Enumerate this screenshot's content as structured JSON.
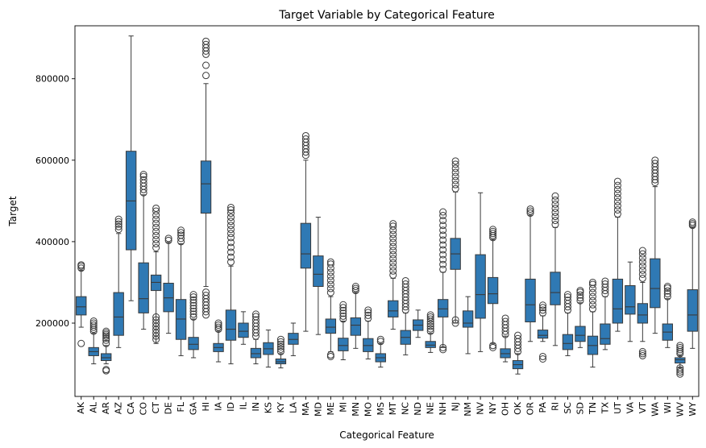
{
  "chart_data": {
    "type": "box",
    "title": "Target Variable by Categorical Feature",
    "xlabel": "Categorical Feature",
    "ylabel": "Target",
    "ylim": [
      20000,
      930000
    ],
    "yticks": [
      200000,
      400000,
      600000,
      800000
    ],
    "grid": false,
    "box_color": "#2f79b4",
    "categories": [
      "AK",
      "AL",
      "AR",
      "AZ",
      "CA",
      "CO",
      "CT",
      "DE",
      "FL",
      "GA",
      "HI",
      "IA",
      "ID",
      "IL",
      "IN",
      "KS",
      "KY",
      "LA",
      "MA",
      "MD",
      "ME",
      "MI",
      "MN",
      "MO",
      "MS",
      "MT",
      "NC",
      "ND",
      "NE",
      "NH",
      "NJ",
      "NM",
      "NV",
      "NY",
      "OH",
      "OK",
      "OR",
      "PA",
      "RI",
      "SC",
      "SD",
      "TN",
      "TX",
      "UT",
      "VA",
      "VT",
      "WA",
      "WI",
      "WV",
      "WY"
    ],
    "boxes": [
      {
        "lo": 190000,
        "q1": 220000,
        "med": 240000,
        "q3": 265000,
        "hi": 330000,
        "out": [
          150000,
          335000,
          340000,
          343000
        ]
      },
      {
        "lo": 100000,
        "q1": 120000,
        "med": 130000,
        "q3": 140000,
        "hi": 175000,
        "out": [
          180000,
          185000,
          190000,
          195000,
          200000,
          205000
        ]
      },
      {
        "lo": 100000,
        "q1": 108000,
        "med": 115000,
        "q3": 125000,
        "hi": 145000,
        "out": [
          83000,
          86000,
          150000,
          158000,
          163000,
          168000,
          172000,
          176000,
          180000
        ]
      },
      {
        "lo": 140000,
        "q1": 170000,
        "med": 215000,
        "q3": 275000,
        "hi": 420000,
        "out": [
          430000,
          437000,
          443000,
          449000,
          455000
        ]
      },
      {
        "lo": 255000,
        "q1": 380000,
        "med": 500000,
        "q3": 622000,
        "hi": 905000,
        "out": []
      },
      {
        "lo": 185000,
        "q1": 225000,
        "med": 260000,
        "q3": 348000,
        "hi": 515000,
        "out": [
          520000,
          528000,
          536000,
          544000,
          552000,
          560000,
          565000
        ]
      },
      {
        "lo": 150000,
        "q1": 280000,
        "med": 300000,
        "q3": 318000,
        "hi": 375000,
        "out": [
          160000,
          168000,
          176000,
          184000,
          192000,
          200000,
          208000,
          215000,
          385000,
          395000,
          405000,
          415000,
          425000,
          435000,
          445000,
          455000,
          465000,
          475000,
          482000
        ]
      },
      {
        "lo": 175000,
        "q1": 228000,
        "med": 262000,
        "q3": 298000,
        "hi": 398000,
        "out": [
          403000,
          408000
        ]
      },
      {
        "lo": 120000,
        "q1": 160000,
        "med": 210000,
        "q3": 258000,
        "hi": 395000,
        "out": [
          400000,
          408000,
          416000,
          422000,
          428000
        ]
      },
      {
        "lo": 115000,
        "q1": 135000,
        "med": 148000,
        "q3": 165000,
        "hi": 210000,
        "out": [
          215000,
          222000,
          229000,
          236000,
          243000,
          250000,
          257000,
          264000,
          270000
        ]
      },
      {
        "lo": 290000,
        "q1": 470000,
        "med": 542000,
        "q3": 598000,
        "hi": 788000,
        "out": [
          220000,
          228000,
          236000,
          244000,
          252000,
          260000,
          268000,
          276000,
          808000,
          833000,
          860000,
          868000,
          876000,
          884000,
          892000
        ]
      },
      {
        "lo": 105000,
        "q1": 130000,
        "med": 140000,
        "q3": 150000,
        "hi": 180000,
        "out": [
          185000,
          190000,
          195000,
          200000
        ]
      },
      {
        "lo": 100000,
        "q1": 158000,
        "med": 185000,
        "q3": 232000,
        "hi": 340000,
        "out": [
          350000,
          362000,
          374000,
          386000,
          398000,
          410000,
          420000,
          430000,
          440000,
          450000,
          460000,
          470000,
          478000,
          484000
        ]
      },
      {
        "lo": 148000,
        "q1": 165000,
        "med": 180000,
        "q3": 200000,
        "hi": 228000,
        "out": []
      },
      {
        "lo": 100000,
        "q1": 115000,
        "med": 125000,
        "q3": 138000,
        "hi": 160000,
        "out": [
          168000,
          176000,
          184000,
          192000,
          200000,
          208000,
          216000,
          222000
        ]
      },
      {
        "lo": 92000,
        "q1": 123000,
        "med": 137000,
        "q3": 152000,
        "hi": 183000,
        "out": []
      },
      {
        "lo": 90000,
        "q1": 100000,
        "med": 105000,
        "q3": 112000,
        "hi": 125000,
        "out": [
          130000,
          136000,
          142000,
          148000,
          154000,
          160000
        ]
      },
      {
        "lo": 120000,
        "q1": 148000,
        "med": 160000,
        "q3": 175000,
        "hi": 200000,
        "out": []
      },
      {
        "lo": 180000,
        "q1": 335000,
        "med": 370000,
        "q3": 445000,
        "hi": 600000,
        "out": [
          612000,
          620000,
          628000,
          636000,
          644000,
          652000,
          660000
        ]
      },
      {
        "lo": 172000,
        "q1": 290000,
        "med": 320000,
        "q3": 365000,
        "hi": 460000,
        "out": []
      },
      {
        "lo": 130000,
        "q1": 175000,
        "med": 190000,
        "q3": 210000,
        "hi": 265000,
        "out": [
          118000,
          122000,
          275000,
          285000,
          295000,
          305000,
          315000,
          325000,
          335000,
          345000,
          350000
        ]
      },
      {
        "lo": 110000,
        "q1": 132000,
        "med": 145000,
        "q3": 163000,
        "hi": 205000,
        "out": [
          210000,
          217000,
          224000,
          231000,
          238000,
          245000
        ]
      },
      {
        "lo": 138000,
        "q1": 170000,
        "med": 195000,
        "q3": 213000,
        "hi": 275000,
        "out": [
          280000,
          285000,
          290000
        ]
      },
      {
        "lo": 112000,
        "q1": 130000,
        "med": 145000,
        "q3": 162000,
        "hi": 205000,
        "out": [
          212000,
          219000,
          226000,
          232000
        ]
      },
      {
        "lo": 92000,
        "q1": 105000,
        "med": 115000,
        "q3": 125000,
        "hi": 150000,
        "out": [
          155000,
          160000
        ]
      },
      {
        "lo": 185000,
        "q1": 215000,
        "med": 230000,
        "q3": 255000,
        "hi": 310000,
        "out": [
          318000,
          328000,
          338000,
          348000,
          358000,
          368000,
          378000,
          388000,
          398000,
          408000,
          418000,
          428000,
          438000,
          444000
        ]
      },
      {
        "lo": 122000,
        "q1": 148000,
        "med": 165000,
        "q3": 182000,
        "hi": 225000,
        "out": [
          232000,
          240000,
          248000,
          256000,
          264000,
          272000,
          280000,
          288000,
          296000,
          304000
        ]
      },
      {
        "lo": 165000,
        "q1": 182000,
        "med": 195000,
        "q3": 208000,
        "hi": 232000,
        "out": []
      },
      {
        "lo": 128000,
        "q1": 140000,
        "med": 146000,
        "q3": 155000,
        "hi": 175000,
        "out": [
          180000,
          186000,
          192000,
          198000,
          204000,
          210000,
          215000,
          220000
        ]
      },
      {
        "lo": 140000,
        "q1": 215000,
        "med": 235000,
        "q3": 258000,
        "hi": 325000,
        "out": [
          135000,
          140000,
          332000,
          344000,
          356000,
          368000,
          380000,
          392000,
          404000,
          416000,
          428000,
          440000,
          452000,
          464000,
          473000
        ]
      },
      {
        "lo": 200000,
        "q1": 332000,
        "med": 370000,
        "q3": 408000,
        "hi": 522000,
        "out": [
          200000,
          208000,
          530000,
          540000,
          550000,
          560000,
          570000,
          580000,
          590000,
          598000
        ]
      },
      {
        "lo": 125000,
        "q1": 190000,
        "med": 200000,
        "q3": 230000,
        "hi": 265000,
        "out": []
      },
      {
        "lo": 130000,
        "q1": 212000,
        "med": 270000,
        "q3": 368000,
        "hi": 520000,
        "out": []
      },
      {
        "lo": 150000,
        "q1": 248000,
        "med": 272000,
        "q3": 312000,
        "hi": 405000,
        "out": [
          140000,
          145000,
          410000,
          415000,
          420000,
          425000,
          430000
        ]
      },
      {
        "lo": 105000,
        "q1": 115000,
        "med": 125000,
        "q3": 137000,
        "hi": 168000,
        "out": [
          172000,
          180000,
          188000,
          196000,
          204000,
          212000
        ]
      },
      {
        "lo": 75000,
        "q1": 88000,
        "med": 98000,
        "q3": 108000,
        "hi": 125000,
        "out": [
          130000,
          138000,
          146000,
          154000,
          162000,
          170000
        ]
      },
      {
        "lo": 155000,
        "q1": 203000,
        "med": 245000,
        "q3": 308000,
        "hi": 465000,
        "out": [
          470000,
          475000,
          480000
        ]
      },
      {
        "lo": 155000,
        "q1": 163000,
        "med": 170000,
        "q3": 183000,
        "hi": 218000,
        "out": [
          112000,
          118000,
          225000,
          232000,
          238000,
          244000
        ]
      },
      {
        "lo": 145000,
        "q1": 245000,
        "med": 275000,
        "q3": 325000,
        "hi": 435000,
        "out": [
          442000,
          452000,
          462000,
          472000,
          482000,
          492000,
          502000,
          512000
        ]
      },
      {
        "lo": 120000,
        "q1": 135000,
        "med": 150000,
        "q3": 172000,
        "hi": 225000,
        "out": [
          232000,
          240000,
          248000,
          256000,
          264000,
          270000
        ]
      },
      {
        "lo": 140000,
        "q1": 155000,
        "med": 170000,
        "q3": 192000,
        "hi": 250000,
        "out": [
          255000,
          262000,
          269000,
          276000,
          280000
        ]
      },
      {
        "lo": 92000,
        "q1": 123000,
        "med": 145000,
        "q3": 168000,
        "hi": 228000,
        "out": [
          235000,
          245000,
          255000,
          265000,
          275000,
          285000,
          295000,
          300000
        ]
      },
      {
        "lo": 135000,
        "q1": 148000,
        "med": 162000,
        "q3": 198000,
        "hi": 265000,
        "out": [
          272000,
          280000,
          288000,
          296000,
          303000
        ]
      },
      {
        "lo": 180000,
        "q1": 200000,
        "med": 235000,
        "q3": 308000,
        "hi": 460000,
        "out": [
          468000,
          478000,
          488000,
          498000,
          508000,
          518000,
          528000,
          538000,
          548000
        ]
      },
      {
        "lo": 155000,
        "q1": 222000,
        "med": 240000,
        "q3": 292000,
        "hi": 350000,
        "out": []
      },
      {
        "lo": 155000,
        "q1": 200000,
        "med": 220000,
        "q3": 248000,
        "hi": 300000,
        "out": [
          120000,
          125000,
          130000,
          310000,
          320000,
          330000,
          340000,
          350000,
          360000,
          370000,
          378000
        ]
      },
      {
        "lo": 175000,
        "q1": 238000,
        "med": 285000,
        "q3": 358000,
        "hi": 535000,
        "out": [
          545000,
          552000,
          560000,
          568000,
          576000,
          584000,
          592000,
          600000
        ]
      },
      {
        "lo": 140000,
        "q1": 158000,
        "med": 178000,
        "q3": 198000,
        "hi": 260000,
        "out": [
          265000,
          272000,
          279000,
          286000,
          290000
        ]
      },
      {
        "lo": 90000,
        "q1": 102000,
        "med": 110000,
        "q3": 115000,
        "hi": 120000,
        "out": [
          75000,
          80000,
          85000,
          90000,
          125000,
          130000,
          135000,
          140000,
          145000
        ]
      },
      {
        "lo": 138000,
        "q1": 180000,
        "med": 220000,
        "q3": 282000,
        "hi": 435000,
        "out": [
          440000,
          444000,
          448000
        ]
      }
    ]
  }
}
